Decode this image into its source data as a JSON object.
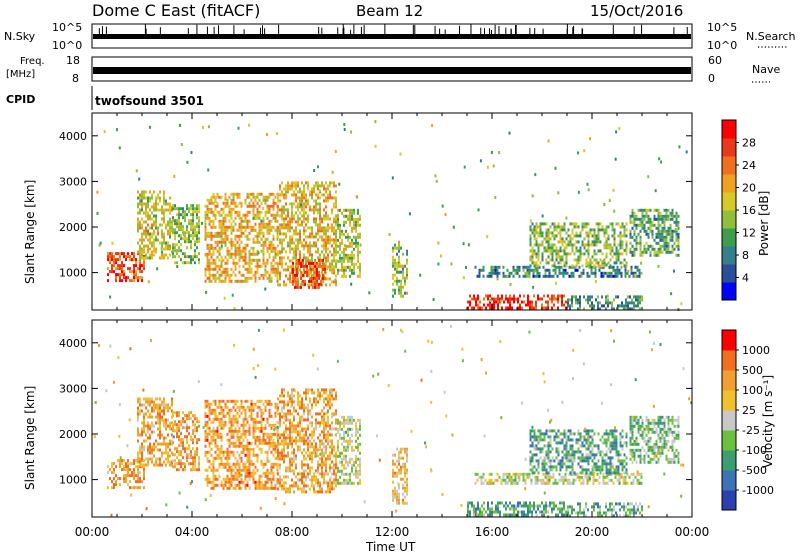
{
  "header": {
    "station": "Dome C East (fitACF)",
    "beam": "Beam 12",
    "date": "15/Oct/2016"
  },
  "top_panels": {
    "nsky_label": "N.Sky",
    "nsky_ticks": [
      "10^5",
      "10^0"
    ],
    "nsearch_label": "N.Search",
    "nsearch_ticks": [
      "10^5",
      "10^0"
    ],
    "freq_label": "Freq.",
    "freq_unit": "[MHz]",
    "freq_ticks": [
      "18",
      "8"
    ],
    "nave_label": "Nave",
    "nave_ticks": [
      "60",
      "0"
    ],
    "cpid_label": "CPID",
    "cpid_value": "twofsound 3501"
  },
  "chart_data": [
    {
      "type": "heatmap",
      "name": "power",
      "ylabel": "Slant Range [km]",
      "yticks": [
        "4000",
        "3000",
        "2000",
        "1000"
      ],
      "ylim": [
        180,
        4500
      ],
      "xlim": [
        0,
        24
      ],
      "colorbar_label": "Power [dB]",
      "colorbar_ticks": [
        "28",
        "24",
        "20",
        "16",
        "12",
        "8",
        "4"
      ],
      "colorbar_colors": [
        "#0000ff",
        "#2a4f9a",
        "#33808a",
        "#3c9e4c",
        "#8fbf3c",
        "#d8c82a",
        "#f0a020",
        "#f07020",
        "#e83a1a",
        "#ff0000"
      ],
      "blobs": [
        {
          "t0": 0.6,
          "t1": 2.1,
          "r0": 800,
          "r1": 1450,
          "v": 0.82
        },
        {
          "t0": 1.8,
          "t1": 3.2,
          "r0": 1300,
          "r1": 2800,
          "v": 0.55
        },
        {
          "t0": 3.2,
          "t1": 4.3,
          "r0": 1200,
          "r1": 2500,
          "v": 0.45
        },
        {
          "t0": 4.5,
          "t1": 7.4,
          "r0": 800,
          "r1": 2750,
          "v": 0.62
        },
        {
          "t0": 7.4,
          "t1": 9.8,
          "r0": 700,
          "r1": 3000,
          "v": 0.6
        },
        {
          "t0": 8.0,
          "t1": 9.3,
          "r0": 650,
          "r1": 1300,
          "v": 0.85
        },
        {
          "t0": 9.8,
          "t1": 10.7,
          "r0": 900,
          "r1": 2400,
          "v": 0.5
        },
        {
          "t0": 12.0,
          "t1": 12.6,
          "r0": 500,
          "r1": 1700,
          "v": 0.45
        },
        {
          "t0": 15.0,
          "t1": 19.0,
          "r0": 200,
          "r1": 520,
          "v": 0.9
        },
        {
          "t0": 15.3,
          "t1": 22.0,
          "r0": 950,
          "r1": 1150,
          "v": 0.25
        },
        {
          "t0": 17.5,
          "t1": 21.4,
          "r0": 1150,
          "r1": 2100,
          "v": 0.45
        },
        {
          "t0": 21.5,
          "t1": 23.5,
          "r0": 1400,
          "r1": 2400,
          "v": 0.35
        },
        {
          "t0": 19.0,
          "t1": 22.0,
          "r0": 200,
          "r1": 500,
          "v": 0.3
        }
      ]
    },
    {
      "type": "heatmap",
      "name": "velocity",
      "ylabel": "Slant Range [km]",
      "yticks": [
        "4000",
        "3000",
        "2000",
        "1000"
      ],
      "ylim": [
        180,
        4500
      ],
      "xlim": [
        0,
        24
      ],
      "colorbar_label": "Velocity [m s⁻¹]",
      "colorbar_ticks": [
        "1000",
        "500",
        "100",
        "25",
        "-25",
        "-100",
        "-500",
        "-1000"
      ],
      "colorbar_colors": [
        "#2a3fb0",
        "#3c72b8",
        "#3c9e70",
        "#6cc040",
        "#c8c8c8",
        "#f0c030",
        "#f0a030",
        "#f07020",
        "#ff0000"
      ],
      "xlabel": "Time UT",
      "xticks": [
        "00:00",
        "04:00",
        "08:00",
        "12:00",
        "16:00",
        "20:00",
        "00:00"
      ],
      "blobs": [
        {
          "t0": 0.6,
          "t1": 2.1,
          "r0": 800,
          "r1": 1450,
          "v": 0.72
        },
        {
          "t0": 1.8,
          "t1": 3.2,
          "r0": 1300,
          "r1": 2800,
          "v": 0.7
        },
        {
          "t0": 3.2,
          "t1": 4.3,
          "r0": 1200,
          "r1": 2500,
          "v": 0.7
        },
        {
          "t0": 4.5,
          "t1": 7.4,
          "r0": 800,
          "r1": 2750,
          "v": 0.72
        },
        {
          "t0": 7.4,
          "t1": 9.8,
          "r0": 700,
          "r1": 3000,
          "v": 0.7
        },
        {
          "t0": 9.8,
          "t1": 10.7,
          "r0": 900,
          "r1": 2400,
          "v": 0.5
        },
        {
          "t0": 12.0,
          "t1": 12.6,
          "r0": 500,
          "r1": 1700,
          "v": 0.62
        },
        {
          "t0": 15.0,
          "t1": 19.0,
          "r0": 200,
          "r1": 520,
          "v": 0.3
        },
        {
          "t0": 15.3,
          "t1": 22.0,
          "r0": 950,
          "r1": 1150,
          "v": 0.5
        },
        {
          "t0": 17.5,
          "t1": 21.4,
          "r0": 1150,
          "r1": 2100,
          "v": 0.32
        },
        {
          "t0": 21.5,
          "t1": 23.5,
          "r0": 1400,
          "r1": 2400,
          "v": 0.4
        },
        {
          "t0": 19.0,
          "t1": 22.0,
          "r0": 200,
          "r1": 500,
          "v": 0.35
        }
      ]
    }
  ]
}
